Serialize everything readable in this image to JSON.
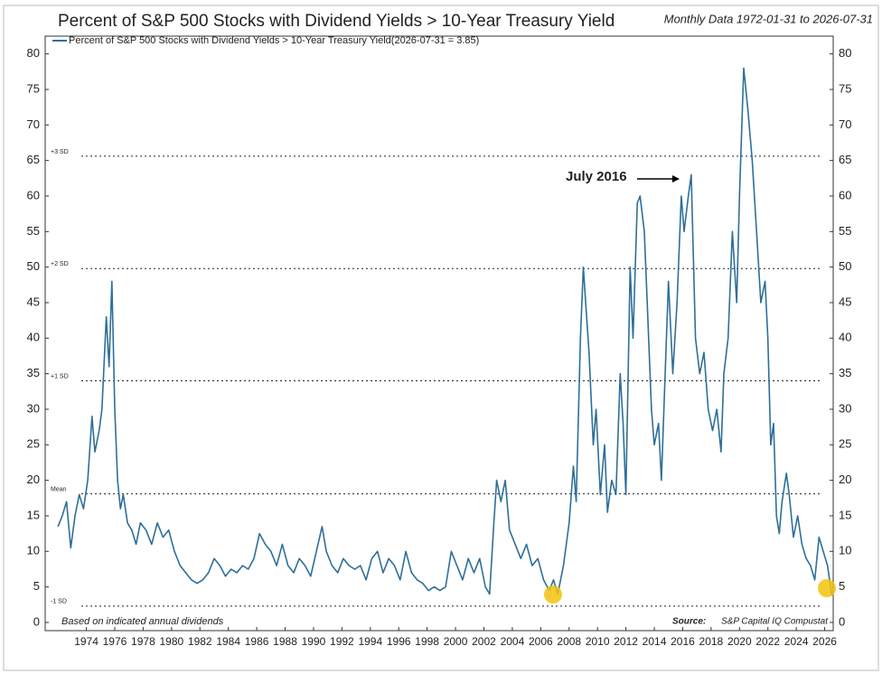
{
  "chart_data": {
    "type": "line",
    "title": "Percent of S&P 500 Stocks with Dividend Yields > 10-Year Treasury Yield",
    "subtitle": "Monthly Data 1972-01-31 to 2026-07-31",
    "footnote": "Based on indicated annual dividends",
    "source_label": "Source:",
    "source": "S&P Capital IQ Compustat",
    "annotation": "July 2016",
    "reference_lines": [
      {
        "label": "+3 SD",
        "value": 65.6
      },
      {
        "label": "+2 SD",
        "value": 49.8
      },
      {
        "label": "+1 SD",
        "value": 34
      },
      {
        "label": "Mean",
        "value": 18.1
      },
      {
        "label": "-1 SD",
        "value": 2.3
      }
    ],
    "xlim": [
      1971.1,
      2026.6
    ],
    "xticks": [
      1974,
      1976,
      1978,
      1980,
      1982,
      1984,
      1986,
      1988,
      1990,
      1992,
      1994,
      1996,
      1998,
      2000,
      2002,
      2004,
      2006,
      2008,
      2010,
      2012,
      2014,
      2016,
      2018,
      2020,
      2022,
      2024,
      2026
    ],
    "ylim": [
      -1.15,
      82.5
    ],
    "yticks": [
      0,
      5,
      10,
      15,
      20,
      25,
      30,
      35,
      40,
      45,
      50,
      55,
      60,
      65,
      70,
      75,
      80
    ],
    "x": [
      1972.0,
      1972.3,
      1972.6,
      1972.9,
      1973.2,
      1973.5,
      1973.8,
      1974.1,
      1974.4,
      1974.6,
      1974.9,
      1975.1,
      1975.4,
      1975.6,
      1975.8,
      1976.0,
      1976.2,
      1976.4,
      1976.6,
      1976.9,
      1977.2,
      1977.5,
      1977.8,
      1978.2,
      1978.6,
      1979.0,
      1979.4,
      1979.8,
      1980.2,
      1980.6,
      1981.0,
      1981.4,
      1981.8,
      1982.2,
      1982.6,
      1983.0,
      1983.4,
      1983.8,
      1984.2,
      1984.6,
      1985.0,
      1985.4,
      1985.8,
      1986.2,
      1986.6,
      1987.0,
      1987.4,
      1987.8,
      1988.2,
      1988.6,
      1989.0,
      1989.4,
      1989.8,
      1990.2,
      1990.6,
      1990.9,
      1991.3,
      1991.7,
      1992.1,
      1992.5,
      1992.9,
      1993.3,
      1993.7,
      1994.1,
      1994.5,
      1994.9,
      1995.3,
      1995.7,
      1996.1,
      1996.5,
      1996.9,
      1997.3,
      1997.7,
      1998.1,
      1998.5,
      1998.9,
      1999.3,
      1999.7,
      2000.1,
      2000.5,
      2000.9,
      2001.3,
      2001.7,
      2002.1,
      2002.4,
      2002.7,
      2002.9,
      2003.2,
      2003.5,
      2003.8,
      2004.2,
      2004.6,
      2005.0,
      2005.4,
      2005.8,
      2006.2,
      2006.6,
      2006.9,
      2007.2,
      2007.6,
      2008.0,
      2008.3,
      2008.5,
      2008.8,
      2009.0,
      2009.2,
      2009.4,
      2009.7,
      2009.9,
      2010.2,
      2010.5,
      2010.7,
      2011.0,
      2011.3,
      2011.6,
      2011.8,
      2012.0,
      2012.3,
      2012.5,
      2012.8,
      2013.0,
      2013.3,
      2013.5,
      2013.8,
      2014.0,
      2014.3,
      2014.5,
      2014.8,
      2015.0,
      2015.3,
      2015.6,
      2015.9,
      2016.1,
      2016.4,
      2016.6,
      2016.9,
      2017.2,
      2017.5,
      2017.8,
      2018.1,
      2018.4,
      2018.7,
      2018.9,
      2019.2,
      2019.5,
      2019.8,
      2020.0,
      2020.3,
      2020.6,
      2020.9,
      2021.2,
      2021.5,
      2021.8,
      2022.0,
      2022.2,
      2022.4,
      2022.6,
      2022.8,
      2023.0,
      2023.3,
      2023.5,
      2023.8,
      2024.1,
      2024.4,
      2024.7,
      2025.0,
      2025.3,
      2025.6,
      2025.9,
      2026.2,
      2026.5
    ],
    "series": [
      {
        "name": "Percent of S&P 500 Stocks with Dividend Yields > 10-Year Treasury Yield(2026-07-31 = 3.85)",
        "color": "#2e6f99",
        "values": [
          13.5,
          15,
          17,
          10.5,
          15,
          18,
          16,
          20,
          29,
          24,
          27,
          30,
          43,
          36,
          48,
          30,
          20,
          16,
          18,
          14,
          13,
          11,
          14,
          13,
          11,
          14,
          12,
          13,
          10,
          8,
          7,
          6,
          5.5,
          6,
          7,
          9,
          8,
          6.5,
          7.5,
          7,
          8,
          7.5,
          9,
          12.5,
          11,
          10,
          8,
          11,
          8,
          7,
          9,
          8,
          6.5,
          10,
          13.5,
          10,
          8,
          7,
          9,
          8,
          7.5,
          8,
          6,
          9,
          10,
          7,
          9,
          8,
          6,
          10,
          7,
          6,
          5.5,
          4.5,
          5,
          4.5,
          5,
          10,
          8,
          6,
          9,
          7,
          9,
          5,
          4,
          14,
          20,
          17,
          20,
          13,
          11,
          9,
          11,
          8,
          9,
          6,
          4.5,
          6,
          4,
          8,
          14,
          22,
          17,
          40,
          50,
          44,
          38,
          25,
          30,
          18,
          25,
          15.5,
          20,
          18,
          35,
          28,
          18,
          50,
          40,
          59,
          60,
          55,
          45,
          30,
          25,
          28,
          20,
          37,
          48,
          35,
          45,
          60,
          55,
          60,
          63,
          40,
          35,
          38,
          30,
          27,
          30,
          24,
          35,
          40,
          55,
          45,
          60,
          78,
          72,
          65,
          55,
          45,
          48,
          40,
          25,
          28,
          15,
          12.5,
          17,
          21,
          18,
          12,
          15,
          11,
          9,
          8,
          6,
          12,
          10,
          8,
          3.85
        ]
      }
    ]
  }
}
